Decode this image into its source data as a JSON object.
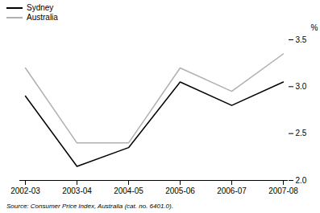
{
  "chart_data": {
    "type": "line",
    "categories": [
      "2002-03",
      "2003-04",
      "2004-05",
      "2005-06",
      "2006-07",
      "2007-08"
    ],
    "series": [
      {
        "name": "Sydney",
        "color": "#000000",
        "values": [
          2.9,
          2.15,
          2.35,
          3.05,
          2.8,
          3.05
        ]
      },
      {
        "name": "Australia",
        "color": "#b0b0b0",
        "values": [
          3.2,
          2.4,
          2.4,
          3.2,
          2.95,
          3.35
        ]
      }
    ],
    "ylabel": "%",
    "ylim": [
      2.0,
      3.5
    ],
    "yticks": [
      {
        "value": 2.0,
        "label": "2.0"
      },
      {
        "value": 2.5,
        "label": "2.5"
      },
      {
        "value": 3.0,
        "label": "3.0"
      },
      {
        "value": 3.5,
        "label": "3.5"
      }
    ],
    "grid": false,
    "legend": "top left",
    "annotations": [
      "Source: Consumer Price Index, Australia (cat. no. 6401.0)."
    ]
  }
}
